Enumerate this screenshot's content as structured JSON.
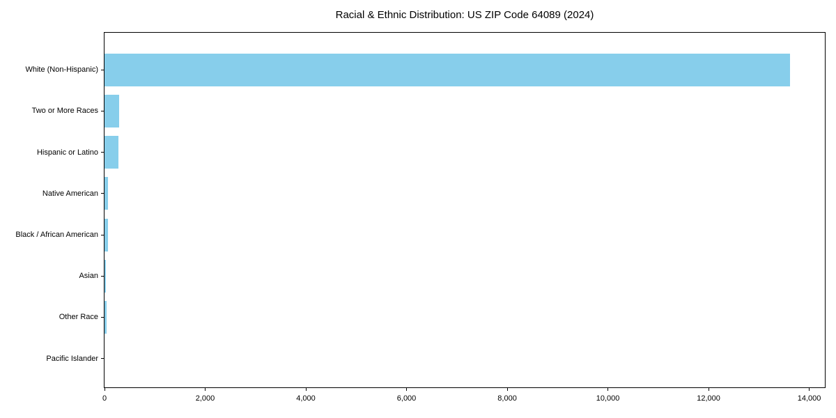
{
  "chart_data": {
    "type": "bar",
    "orientation": "horizontal",
    "title": "Racial & Ethnic Distribution: US ZIP Code 64089 (2024)",
    "categories": [
      "White (Non-Hispanic)",
      "Two or More Races",
      "Hispanic or Latino",
      "Native American",
      "Black / African American",
      "Asian",
      "Other Race",
      "Pacific Islander"
    ],
    "values": [
      13620,
      290,
      275,
      72,
      70,
      30,
      38,
      0
    ],
    "xlabel": "",
    "ylabel": "",
    "xlim": [
      0,
      14310
    ],
    "xticks": {
      "values": [
        0,
        2000,
        4000,
        6000,
        8000,
        10000,
        12000,
        14000
      ],
      "labels": [
        "0",
        "2,000",
        "4,000",
        "6,000",
        "8,000",
        "10,000",
        "12,000",
        "14,000"
      ]
    },
    "bar_color": "#87CEEB",
    "background_color": "#ffffff",
    "spine_color": "#000000",
    "grid": false,
    "legend": null
  }
}
